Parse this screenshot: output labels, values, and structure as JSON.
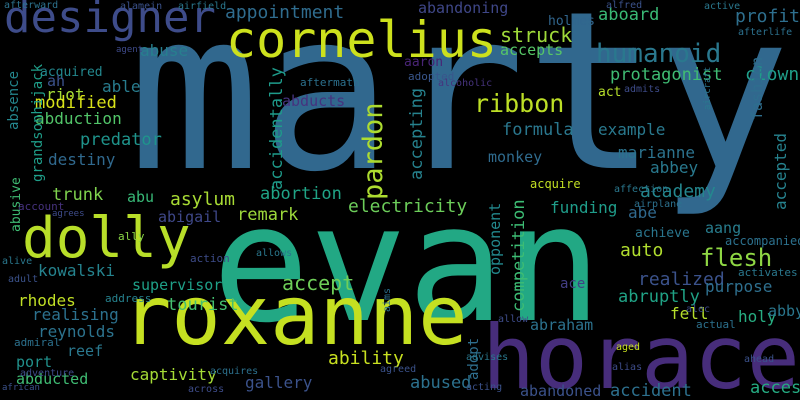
{
  "words": [
    {
      "text": "marty",
      "color": "#31688e"
    },
    {
      "text": "evan",
      "color": "#22a884"
    },
    {
      "text": "horace",
      "color": "#472d7b"
    },
    {
      "text": "roxanne",
      "color": "#c5e021"
    },
    {
      "text": "cornelius",
      "color": "#cde11d"
    },
    {
      "text": "dolly",
      "color": "#b8de29"
    },
    {
      "text": "designer",
      "color": "#3e4c8a"
    },
    {
      "text": "humanoid",
      "color": "#2a788e"
    },
    {
      "text": "ribbon",
      "color": "#bddf26"
    },
    {
      "text": "pardon",
      "color": "#addc30"
    },
    {
      "text": "flesh",
      "color": "#8fd744"
    },
    {
      "text": "struck",
      "color": "#9fda3a"
    },
    {
      "text": "accepts",
      "color": "#56c667"
    },
    {
      "text": "aboard",
      "color": "#3aba76"
    },
    {
      "text": "profit",
      "color": "#2e6f8e"
    },
    {
      "text": "appointment",
      "color": "#2f6c8e"
    },
    {
      "text": "abandoning",
      "color": "#3f4788"
    },
    {
      "text": "holmes",
      "color": "#31668e"
    },
    {
      "text": "protagonist",
      "color": "#3fbc73"
    },
    {
      "text": "clown",
      "color": "#1f9e89"
    },
    {
      "text": "riot",
      "color": "#a2da37"
    },
    {
      "text": "able",
      "color": "#287c8e"
    },
    {
      "text": "abuse",
      "color": "#277f8e"
    },
    {
      "text": "acquired",
      "color": "#23888e"
    },
    {
      "text": "aaron",
      "color": "#482475"
    },
    {
      "text": "adopted",
      "color": "#39568c"
    },
    {
      "text": "abducts",
      "color": "#46337f"
    },
    {
      "text": "modified",
      "color": "#d8e219"
    },
    {
      "text": "abduction",
      "color": "#52c569"
    },
    {
      "text": "predator",
      "color": "#1f948c"
    },
    {
      "text": "destiny",
      "color": "#30698e"
    },
    {
      "text": "trunk",
      "color": "#7fd34e"
    },
    {
      "text": "asylum",
      "color": "#a8db34"
    },
    {
      "text": "abortion",
      "color": "#20a486"
    },
    {
      "text": "remark",
      "color": "#9dd93b"
    },
    {
      "text": "abigail",
      "color": "#3f4889"
    },
    {
      "text": "abu",
      "color": "#38b977"
    },
    {
      "text": "formula",
      "color": "#2a778e"
    },
    {
      "text": "example",
      "color": "#29798e"
    },
    {
      "text": "marianne",
      "color": "#2c738e"
    },
    {
      "text": "abbey",
      "color": "#29798e"
    },
    {
      "text": "academy",
      "color": "#24878e"
    },
    {
      "text": "monkey",
      "color": "#2f6b8e"
    },
    {
      "text": "accepting",
      "color": "#26828e"
    },
    {
      "text": "accidentally",
      "color": "#1e9b8a"
    },
    {
      "text": "fashion",
      "color": "#2e6e8e"
    },
    {
      "text": "accepted",
      "color": "#26828e"
    },
    {
      "text": "aang",
      "color": "#287d8e"
    },
    {
      "text": "abe",
      "color": "#30698e"
    },
    {
      "text": "funding",
      "color": "#1f9d8a"
    },
    {
      "text": "achieve",
      "color": "#2a768e"
    },
    {
      "text": "auto",
      "color": "#b0dd2f"
    },
    {
      "text": "realized",
      "color": "#3b528b"
    },
    {
      "text": "purpose",
      "color": "#2e6f8e"
    },
    {
      "text": "abruptly",
      "color": "#20a386"
    },
    {
      "text": "fell",
      "color": "#b5de2b"
    },
    {
      "text": "holy",
      "color": "#27ad81"
    },
    {
      "text": "abby",
      "color": "#2a778e"
    },
    {
      "text": "abraham",
      "color": "#2c728e"
    },
    {
      "text": "ace",
      "color": "#433e85"
    },
    {
      "text": "supervisor",
      "color": "#1fa088"
    },
    {
      "text": "tourist",
      "color": "#44bf70"
    },
    {
      "text": "kowalski",
      "color": "#25838e"
    },
    {
      "text": "rhodes",
      "color": "#c0df25"
    },
    {
      "text": "realising",
      "color": "#2c718e"
    },
    {
      "text": "reynolds",
      "color": "#2c738e"
    },
    {
      "text": "reef",
      "color": "#2a788e"
    },
    {
      "text": "port",
      "color": "#21918c"
    },
    {
      "text": "abducted",
      "color": "#3fbc73"
    },
    {
      "text": "captivity",
      "color": "#a5db36"
    },
    {
      "text": "gallery",
      "color": "#3b528b"
    },
    {
      "text": "ability",
      "color": "#c8e020"
    },
    {
      "text": "abused",
      "color": "#2c718e"
    },
    {
      "text": "adopt",
      "color": "#2e6e8e"
    },
    {
      "text": "accident",
      "color": "#2d708e"
    },
    {
      "text": "access",
      "color": "#25ab82"
    },
    {
      "text": "abandoned",
      "color": "#3b528b"
    },
    {
      "text": "accompanied",
      "color": "#2c718e"
    },
    {
      "text": "activates",
      "color": "#2a788e"
    },
    {
      "text": "absence",
      "color": "#24878e"
    },
    {
      "text": "grandsonhijack",
      "color": "#1f9e89"
    },
    {
      "text": "ah",
      "color": "#3b528b"
    },
    {
      "text": "opponent",
      "color": "#23898e"
    },
    {
      "text": "abusive",
      "color": "#3fbc73"
    },
    {
      "text": "account",
      "color": "#46327e"
    },
    {
      "text": "agrees",
      "color": "#3e4c8a"
    },
    {
      "text": "ally",
      "color": "#8bd646"
    },
    {
      "text": "address",
      "color": "#26828e"
    },
    {
      "text": "competition",
      "color": "#3dbc74"
    },
    {
      "text": "electricity",
      "color": "#6ccd5a"
    },
    {
      "text": "accept",
      "color": "#6ece58"
    },
    {
      "text": "afterward",
      "color": "#2c728e"
    },
    {
      "text": "alamein",
      "color": "#3b528b"
    },
    {
      "text": "airfield",
      "color": "#2a788e"
    },
    {
      "text": "agent",
      "color": "#3e4a89"
    },
    {
      "text": "aftermath",
      "color": "#2c718e"
    },
    {
      "text": "alcoholic",
      "color": "#46337e"
    },
    {
      "text": "alive",
      "color": "#2a788e"
    },
    {
      "text": "adult",
      "color": "#3b528b"
    },
    {
      "text": "admiral",
      "color": "#2c718e"
    },
    {
      "text": "adventure",
      "color": "#3e4c8a"
    },
    {
      "text": "african",
      "color": "#3b528b"
    },
    {
      "text": "allow",
      "color": "#3e4c8a"
    },
    {
      "text": "advises",
      "color": "#2a788e"
    },
    {
      "text": "acting",
      "color": "#3b528b"
    },
    {
      "text": "across",
      "color": "#3e4c8a"
    },
    {
      "text": "acquires",
      "color": "#2c718e"
    },
    {
      "text": "allows",
      "color": "#2a788e"
    },
    {
      "text": "action",
      "color": "#3e4c8a"
    },
    {
      "text": "affection",
      "color": "#2a788e"
    },
    {
      "text": "acquire",
      "color": "#c2df23"
    },
    {
      "text": "airplane",
      "color": "#2c718e"
    },
    {
      "text": "admits",
      "color": "#3e4c8a"
    },
    {
      "text": "act",
      "color": "#b5de2b"
    },
    {
      "text": "alfred",
      "color": "#3b528b"
    },
    {
      "text": "active",
      "color": "#2a788e"
    },
    {
      "text": "afterlife",
      "color": "#2c718e"
    },
    {
      "text": "aircraft",
      "color": "#2a788e"
    },
    {
      "text": "alec",
      "color": "#3e4c8a"
    },
    {
      "text": "actual",
      "color": "#2c718e"
    },
    {
      "text": "ahead",
      "color": "#3b528b"
    },
    {
      "text": "aged",
      "color": "#c8e020"
    },
    {
      "text": "alias",
      "color": "#3e4c8a"
    },
    {
      "text": "agreed",
      "color": "#3b528b"
    },
    {
      "text": "aims",
      "color": "#2c718e"
    }
  ]
}
